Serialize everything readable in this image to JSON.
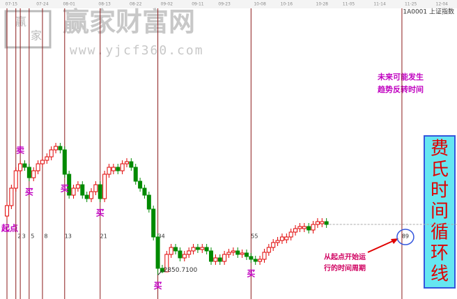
{
  "chart_data": {
    "type": "candlestick",
    "symbol": "1A0001 上证指数",
    "watermark": "赢家财富网",
    "watermark_url": "www.yjcf360.com",
    "logo_text": [
      "赢",
      "家"
    ],
    "categories": [
      null,
      "07-15",
      null,
      null,
      null,
      null,
      null,
      null,
      "07-24",
      null,
      null,
      null,
      null,
      null,
      "08-01",
      null,
      null,
      null,
      null,
      null,
      null,
      null,
      "08-13",
      null,
      null,
      null,
      null,
      null,
      null,
      "08-22",
      null,
      null,
      null,
      null,
      null,
      null,
      "09-02",
      null,
      null,
      null,
      null,
      null,
      null,
      "09-11",
      null,
      null,
      null,
      null,
      null,
      "09-23",
      null,
      null,
      null,
      null,
      null,
      null,
      null,
      "10-08",
      null,
      null,
      null,
      null,
      null,
      "10-16",
      null,
      null,
      null,
      null,
      null,
      null,
      null,
      "10-28",
      null,
      null,
      null,
      null,
      null,
      "11-05",
      null,
      null,
      null,
      null,
      null,
      null,
      "11-14",
      null,
      null,
      null,
      null,
      null,
      null,
      "11-25",
      null,
      null,
      null,
      null,
      null,
      null,
      "12-04"
    ],
    "open": [
      3020,
      3050,
      3100,
      3150,
      3170,
      3160,
      3130,
      3150,
      3170,
      3180,
      3190,
      3210,
      3220,
      3210,
      3140,
      3080,
      3100,
      3110,
      3080,
      3070,
      3090,
      3110,
      3070,
      3140,
      3150,
      3160,
      3150,
      3170,
      3176,
      3160,
      3120,
      3100,
      3080,
      3040,
      2960,
      2870,
      2860,
      2910,
      2930,
      2920,
      2900,
      2910,
      2920,
      2930,
      2924,
      2930,
      2920,
      2890,
      2900,
      2890,
      2910,
      2916,
      2920,
      2910,
      2914,
      2904,
      2896,
      2890,
      2896,
      2916,
      2930,
      2944,
      2950,
      2952,
      2960,
      2974,
      2984,
      2984,
      2990,
      2980,
      2996,
      2998,
      3004,
      null,
      null,
      null,
      null,
      null,
      null,
      null,
      null,
      null,
      null,
      null,
      null,
      null,
      null,
      null,
      null,
      null,
      null,
      null,
      null,
      null,
      null,
      null,
      null,
      null,
      null
    ],
    "close": [
      3050,
      3100,
      3150,
      3170,
      3160,
      3130,
      3150,
      3170,
      3180,
      3190,
      3210,
      3220,
      3210,
      3140,
      3080,
      3100,
      3110,
      3080,
      3070,
      3090,
      3110,
      3070,
      3140,
      3160,
      3160,
      3150,
      3170,
      3176,
      3160,
      3120,
      3100,
      3080,
      3040,
      2960,
      2870,
      2860,
      2910,
      2930,
      2920,
      2900,
      2910,
      2920,
      2930,
      2924,
      2930,
      2920,
      2890,
      2900,
      2890,
      2910,
      2916,
      2920,
      2910,
      2914,
      2904,
      2896,
      2890,
      2896,
      2916,
      2930,
      2944,
      2950,
      2960,
      2960,
      2974,
      2984,
      2990,
      2990,
      2980,
      2996,
      3004,
      3004,
      2996,
      null,
      null,
      null,
      null,
      null,
      null,
      null,
      null,
      null,
      null,
      null,
      null,
      null,
      null,
      null,
      null,
      null,
      null,
      null,
      null,
      null,
      null,
      null,
      null,
      null,
      null
    ],
    "high": [
      3060,
      3110,
      3160,
      3180,
      3180,
      3170,
      3160,
      3180,
      3190,
      3200,
      3220,
      3230,
      3230,
      3220,
      3150,
      3110,
      3120,
      3120,
      3090,
      3100,
      3120,
      3120,
      3150,
      3170,
      3170,
      3170,
      3180,
      3186,
      3186,
      3170,
      3130,
      3110,
      3090,
      3050,
      2970,
      2880,
      2920,
      2940,
      2940,
      2930,
      2920,
      2930,
      2940,
      2940,
      2940,
      2940,
      2930,
      2910,
      2910,
      2920,
      2926,
      2930,
      2930,
      2924,
      2924,
      2914,
      2906,
      2906,
      2926,
      2940,
      2954,
      2960,
      2970,
      2970,
      2984,
      2994,
      3000,
      3000,
      3000,
      3006,
      3014,
      3014,
      3014,
      null,
      null,
      null,
      null,
      null,
      null,
      null,
      null,
      null,
      null,
      null,
      null,
      null,
      null,
      null,
      null,
      null,
      null,
      null,
      null,
      null,
      null,
      null,
      null,
      null,
      null
    ],
    "low": [
      3010,
      3040,
      3090,
      3140,
      3150,
      3120,
      3120,
      3140,
      3160,
      3170,
      3180,
      3200,
      3200,
      3130,
      3070,
      3070,
      3090,
      3070,
      3060,
      3060,
      3080,
      3060,
      3060,
      3130,
      3140,
      3140,
      3140,
      3160,
      3150,
      3110,
      3090,
      3070,
      3030,
      2950,
      2850.71,
      2856,
      2862,
      2900,
      2910,
      2890,
      2890,
      2900,
      2910,
      2914,
      2914,
      2910,
      2880,
      2880,
      2880,
      2880,
      2900,
      2906,
      2900,
      2900,
      2894,
      2886,
      2880,
      2880,
      2886,
      2906,
      2920,
      2934,
      2940,
      2942,
      2950,
      2964,
      2974,
      2974,
      2970,
      2970,
      2986,
      2988,
      2986,
      null,
      null,
      null,
      null,
      null,
      null,
      null,
      null,
      null,
      null,
      null,
      null,
      null,
      null,
      null,
      null,
      null,
      null,
      null,
      null,
      null,
      null,
      null,
      null,
      null,
      null
    ],
    "up_color": "#e00000",
    "down_color": "#008a00",
    "ylim": [
      2800,
      3320
    ],
    "low_label": "2850.7100",
    "start_label": "起点",
    "fib_numbers": [
      2,
      3,
      5,
      8,
      13,
      21,
      34,
      55,
      89
    ],
    "signals": [
      {
        "index": 3,
        "text": "卖"
      },
      {
        "index": 5,
        "text": "买"
      },
      {
        "index": 13,
        "text": "买"
      },
      {
        "index": 21,
        "text": "买"
      },
      {
        "index": 34,
        "text": "买"
      },
      {
        "index": 55,
        "text": "买"
      }
    ],
    "note_future": [
      "未来可能发生",
      "趋势反转时间"
    ],
    "note_period": [
      "从起点开始运",
      "行的时间周期"
    ],
    "side_title": [
      "费",
      "氏",
      "时",
      "间",
      "循",
      "环",
      "线"
    ]
  }
}
